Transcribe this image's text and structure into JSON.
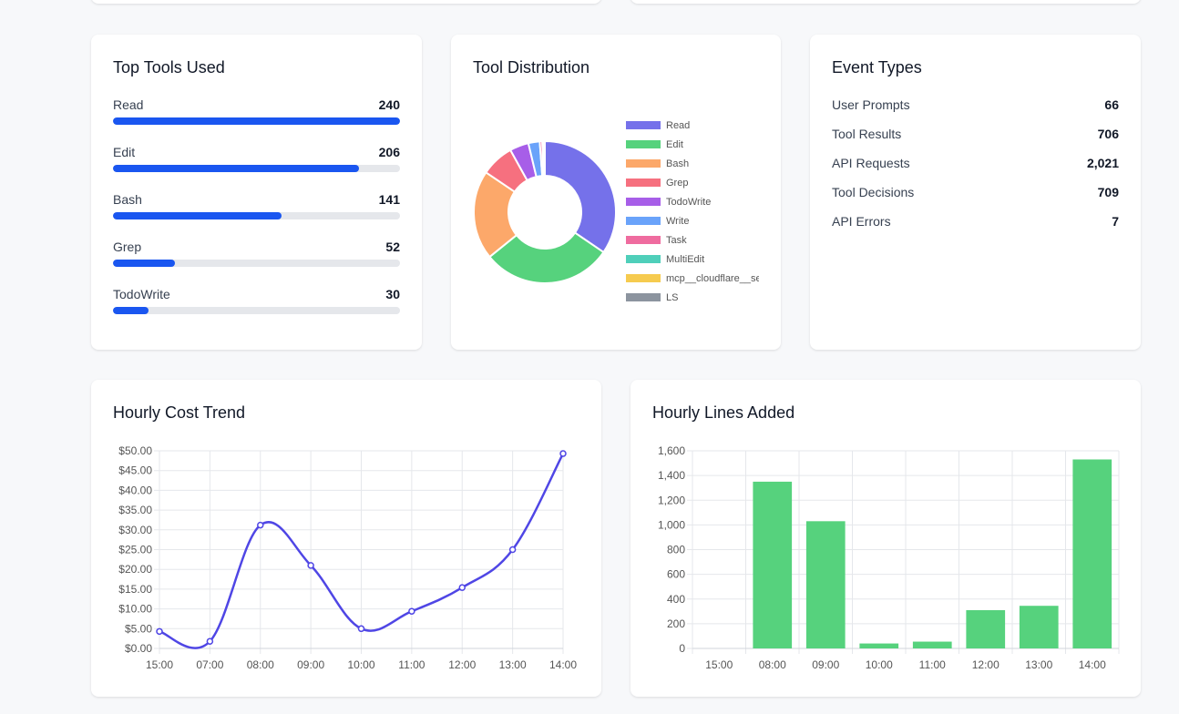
{
  "top_tools": {
    "title": "Top Tools Used",
    "max": 240,
    "items": [
      {
        "name": "Read",
        "count": 240
      },
      {
        "name": "Edit",
        "count": 206
      },
      {
        "name": "Bash",
        "count": 141
      },
      {
        "name": "Grep",
        "count": 52
      },
      {
        "name": "TodoWrite",
        "count": 30
      }
    ]
  },
  "distribution": {
    "title": "Tool Distribution",
    "slices": [
      {
        "label": "Read",
        "value": 240,
        "color": "#7571ea"
      },
      {
        "label": "Edit",
        "value": 206,
        "color": "#56d27d"
      },
      {
        "label": "Bash",
        "value": 141,
        "color": "#fca86a"
      },
      {
        "label": "Grep",
        "value": 52,
        "color": "#f6707f"
      },
      {
        "label": "TodoWrite",
        "value": 30,
        "color": "#a75ee8"
      },
      {
        "label": "Write",
        "value": 18,
        "color": "#6aa3fa"
      },
      {
        "label": "Task",
        "value": 4,
        "color": "#ef6c9f"
      },
      {
        "label": "MultiEdit",
        "value": 2,
        "color": "#4fcfba"
      },
      {
        "label": "mcp__cloudflare__se",
        "value": 1,
        "color": "#f6cb4f"
      },
      {
        "label": "LS",
        "value": 1,
        "color": "#8c949f"
      }
    ]
  },
  "events": {
    "title": "Event Types",
    "rows": [
      {
        "label": "User Prompts",
        "value": "66"
      },
      {
        "label": "Tool Results",
        "value": "706"
      },
      {
        "label": "API Requests",
        "value": "2,021"
      },
      {
        "label": "Tool Decisions",
        "value": "709"
      },
      {
        "label": "API Errors",
        "value": "7"
      }
    ]
  },
  "chart_data": [
    {
      "type": "line",
      "title": "Hourly Cost Trend",
      "categories": [
        "15:00",
        "07:00",
        "08:00",
        "09:00",
        "10:00",
        "11:00",
        "12:00",
        "13:00",
        "14:00"
      ],
      "series": [
        {
          "name": "Cost",
          "values": [
            4.3,
            1.8,
            31.2,
            21.0,
            5.0,
            9.4,
            15.4,
            25.0,
            49.3
          ],
          "color": "#4f46e5"
        }
      ],
      "ylim": [
        0,
        50
      ],
      "yticks": [
        "$0.00",
        "$5.00",
        "$10.00",
        "$15.00",
        "$20.00",
        "$25.00",
        "$30.00",
        "$35.00",
        "$40.00",
        "$45.00",
        "$50.00"
      ],
      "ytick_values": [
        0,
        5,
        10,
        15,
        20,
        25,
        30,
        35,
        40,
        45,
        50
      ]
    },
    {
      "type": "bar",
      "title": "Hourly Lines Added",
      "categories": [
        "15:00",
        "08:00",
        "09:00",
        "10:00",
        "11:00",
        "12:00",
        "13:00",
        "14:00"
      ],
      "series": [
        {
          "name": "Lines Added",
          "values": [
            0,
            1350,
            1030,
            40,
            55,
            310,
            345,
            1530
          ],
          "color": "#56d27d"
        }
      ],
      "ylim": [
        0,
        1600
      ],
      "yticks": [
        "0",
        "200",
        "400",
        "600",
        "800",
        "1,000",
        "1,200",
        "1,400",
        "1,600"
      ],
      "ytick_values": [
        0,
        200,
        400,
        600,
        800,
        1000,
        1200,
        1400,
        1600
      ]
    }
  ]
}
